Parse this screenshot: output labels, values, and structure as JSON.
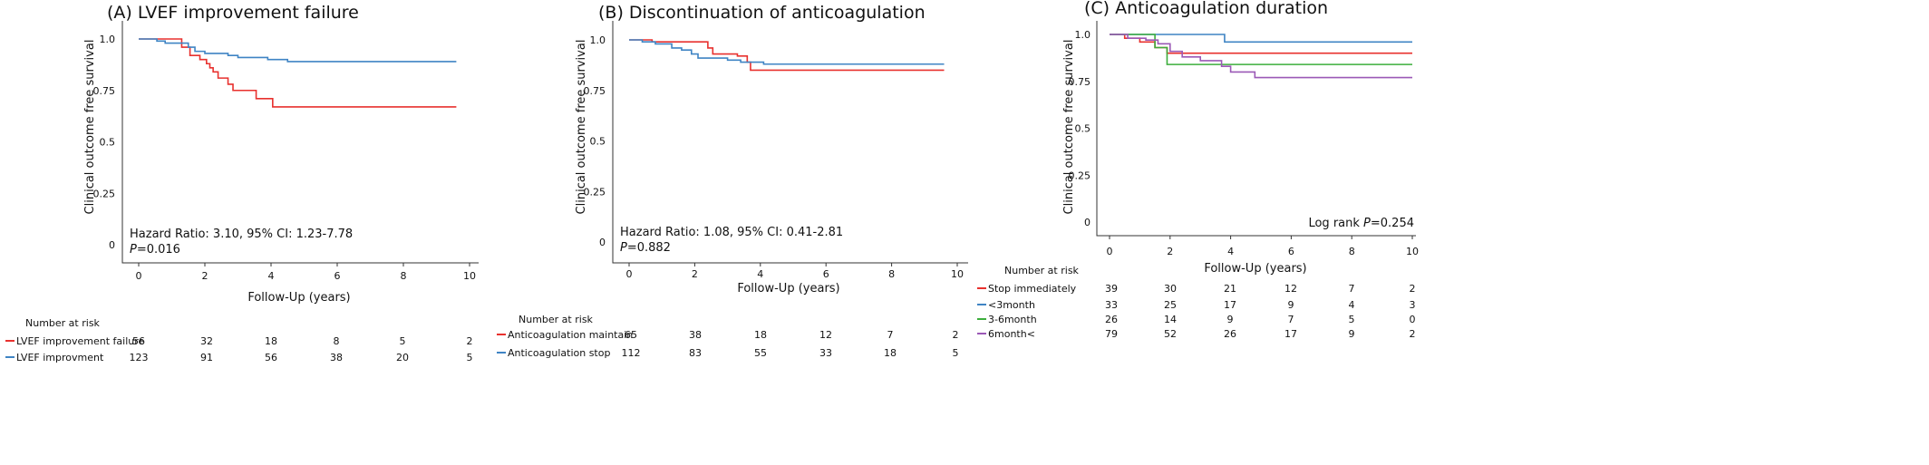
{
  "chart_data": [
    {
      "type": "line",
      "title": "(A) LVEF improvement failure",
      "xlabel": "Follow-Up (years)",
      "ylabel": "Clinical outcome free survival",
      "xlim": [
        0,
        10
      ],
      "ylim": [
        0,
        1
      ],
      "x_ticks": [
        "0",
        "2",
        "4",
        "6",
        "8",
        "10"
      ],
      "y_ticks": [
        "0",
        "0.25",
        "0.5",
        "0.75",
        "1.0"
      ],
      "annotation": "Hazard Ratio: 3.10, 95% CI: 1.23-7.78",
      "p_label": "P",
      "p_value": "=0.016",
      "risk_title": "Number at risk",
      "series": [
        {
          "name": "LVEF improvement failure",
          "color": "#e8312e",
          "x": [
            0,
            1.05,
            1.3,
            1.55,
            1.85,
            2.05,
            2.15,
            2.25,
            2.4,
            2.7,
            2.85,
            3.2,
            3.55,
            3.9,
            4.05,
            9.6
          ],
          "y": [
            1.0,
            1.0,
            0.96,
            0.92,
            0.9,
            0.88,
            0.86,
            0.84,
            0.81,
            0.78,
            0.75,
            0.75,
            0.71,
            0.71,
            0.67,
            0.67
          ],
          "risk": [
            "56",
            "32",
            "18",
            "8",
            "5",
            "2"
          ]
        },
        {
          "name": "LVEF improvment",
          "color": "#3f84c4",
          "x": [
            0,
            0.55,
            0.8,
            1.1,
            1.5,
            1.7,
            2.0,
            2.7,
            3.0,
            3.9,
            4.5,
            9.6
          ],
          "y": [
            1.0,
            0.99,
            0.98,
            0.98,
            0.96,
            0.94,
            0.93,
            0.92,
            0.91,
            0.9,
            0.89,
            0.89
          ],
          "risk": [
            "123",
            "91",
            "56",
            "38",
            "20",
            "5"
          ]
        }
      ]
    },
    {
      "type": "line",
      "title": "(B) Discontinuation of anticoagulation",
      "xlabel": "Follow-Up (years)",
      "ylabel": "Clinical outcome free survival",
      "xlim": [
        0,
        10
      ],
      "ylim": [
        0,
        1
      ],
      "x_ticks": [
        "0",
        "2",
        "4",
        "6",
        "8",
        "10"
      ],
      "y_ticks": [
        "0",
        "0.25",
        "0.5",
        "0.75",
        "1.0"
      ],
      "annotation": "Hazard Ratio: 1.08, 95% CI: 0.41-2.81",
      "p_label": "P",
      "p_value": "=0.882",
      "risk_title": "Number at risk",
      "series": [
        {
          "name": "Anticoagulation maintain",
          "color": "#e8312e",
          "x": [
            0,
            0.7,
            2.05,
            2.4,
            2.55,
            3.3,
            3.6,
            3.7,
            9.6
          ],
          "y": [
            1.0,
            0.99,
            0.99,
            0.96,
            0.93,
            0.92,
            0.89,
            0.85,
            0.85
          ],
          "risk": [
            "65",
            "38",
            "18",
            "12",
            "7",
            "2"
          ]
        },
        {
          "name": "Anticoagulation stop",
          "color": "#3f84c4",
          "x": [
            0,
            0.4,
            0.8,
            1.3,
            1.6,
            1.9,
            2.1,
            2.6,
            3.0,
            3.4,
            4.1,
            9.6
          ],
          "y": [
            1.0,
            0.99,
            0.98,
            0.96,
            0.95,
            0.93,
            0.91,
            0.91,
            0.9,
            0.89,
            0.88,
            0.88
          ],
          "risk": [
            "112",
            "83",
            "55",
            "33",
            "18",
            "5"
          ]
        }
      ]
    },
    {
      "type": "line",
      "title": "(C) Anticoagulation duration",
      "xlabel": "Follow-Up (years)",
      "ylabel": "Clinical outcome free survival",
      "xlim": [
        0,
        10
      ],
      "ylim": [
        0,
        1
      ],
      "x_ticks": [
        "0",
        "2",
        "4",
        "6",
        "8",
        "10"
      ],
      "y_ticks": [
        "0",
        "0.25",
        "0.5",
        "0.75",
        "1.0"
      ],
      "annotation_prefix": "Log rank ",
      "p_label": "P",
      "p_value": "=0.254",
      "risk_title": "Number at risk",
      "series": [
        {
          "name": "Stop immediately",
          "color": "#e8312e",
          "x": [
            0,
            0.5,
            1.0,
            1.5,
            1.9,
            10
          ],
          "y": [
            1.0,
            0.98,
            0.96,
            0.93,
            0.9,
            0.9
          ],
          "risk": [
            "39",
            "30",
            "21",
            "12",
            "7",
            "2"
          ]
        },
        {
          "name": "<3month",
          "color": "#3f84c4",
          "x": [
            0,
            3.8,
            10
          ],
          "y": [
            1.0,
            0.96,
            0.96
          ],
          "risk": [
            "33",
            "25",
            "17",
            "9",
            "4",
            "3"
          ]
        },
        {
          "name": "3-6month",
          "color": "#3cae3c",
          "x": [
            0,
            1.5,
            1.9,
            10
          ],
          "y": [
            1.0,
            0.93,
            0.84,
            0.84
          ],
          "risk": [
            "26",
            "14",
            "9",
            "7",
            "5",
            "0"
          ]
        },
        {
          "name": "6month<",
          "color": "#9b59b6",
          "x": [
            0,
            0.6,
            1.2,
            1.6,
            2.0,
            2.4,
            3.0,
            3.7,
            4.0,
            4.8,
            10
          ],
          "y": [
            1.0,
            0.98,
            0.97,
            0.95,
            0.91,
            0.88,
            0.86,
            0.83,
            0.8,
            0.77,
            0.77
          ],
          "risk": [
            "79",
            "52",
            "26",
            "17",
            "9",
            "2"
          ]
        }
      ]
    }
  ]
}
